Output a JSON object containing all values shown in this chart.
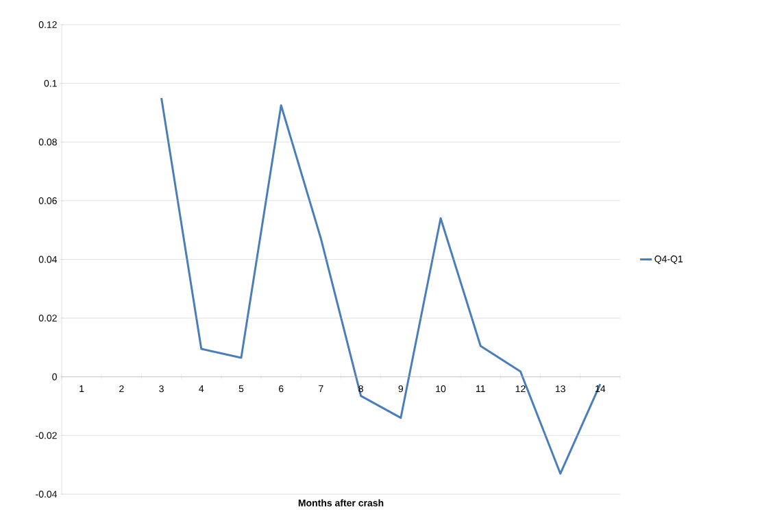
{
  "chart_data": {
    "type": "line",
    "xlabel": "Months after crash",
    "categories": [
      "1",
      "2",
      "3",
      "4",
      "5",
      "6",
      "7",
      "8",
      "9",
      "10",
      "11",
      "12",
      "13",
      "14"
    ],
    "series": [
      {
        "name": "Q4-Q1",
        "color": "#4a7ebb",
        "values": [
          null,
          null,
          0.095,
          0.0095,
          0.0065,
          0.0925,
          0.047,
          -0.0065,
          -0.014,
          0.054,
          0.0105,
          0.0018,
          -0.033,
          -0.0025
        ]
      }
    ],
    "ylim": [
      -0.04,
      0.12
    ],
    "yticks": [
      -0.04,
      -0.02,
      0,
      0.02,
      0.04,
      0.06,
      0.08,
      0.1,
      0.12
    ],
    "grid": "y",
    "legend": "right",
    "marker": "none",
    "line_style": "solid"
  }
}
